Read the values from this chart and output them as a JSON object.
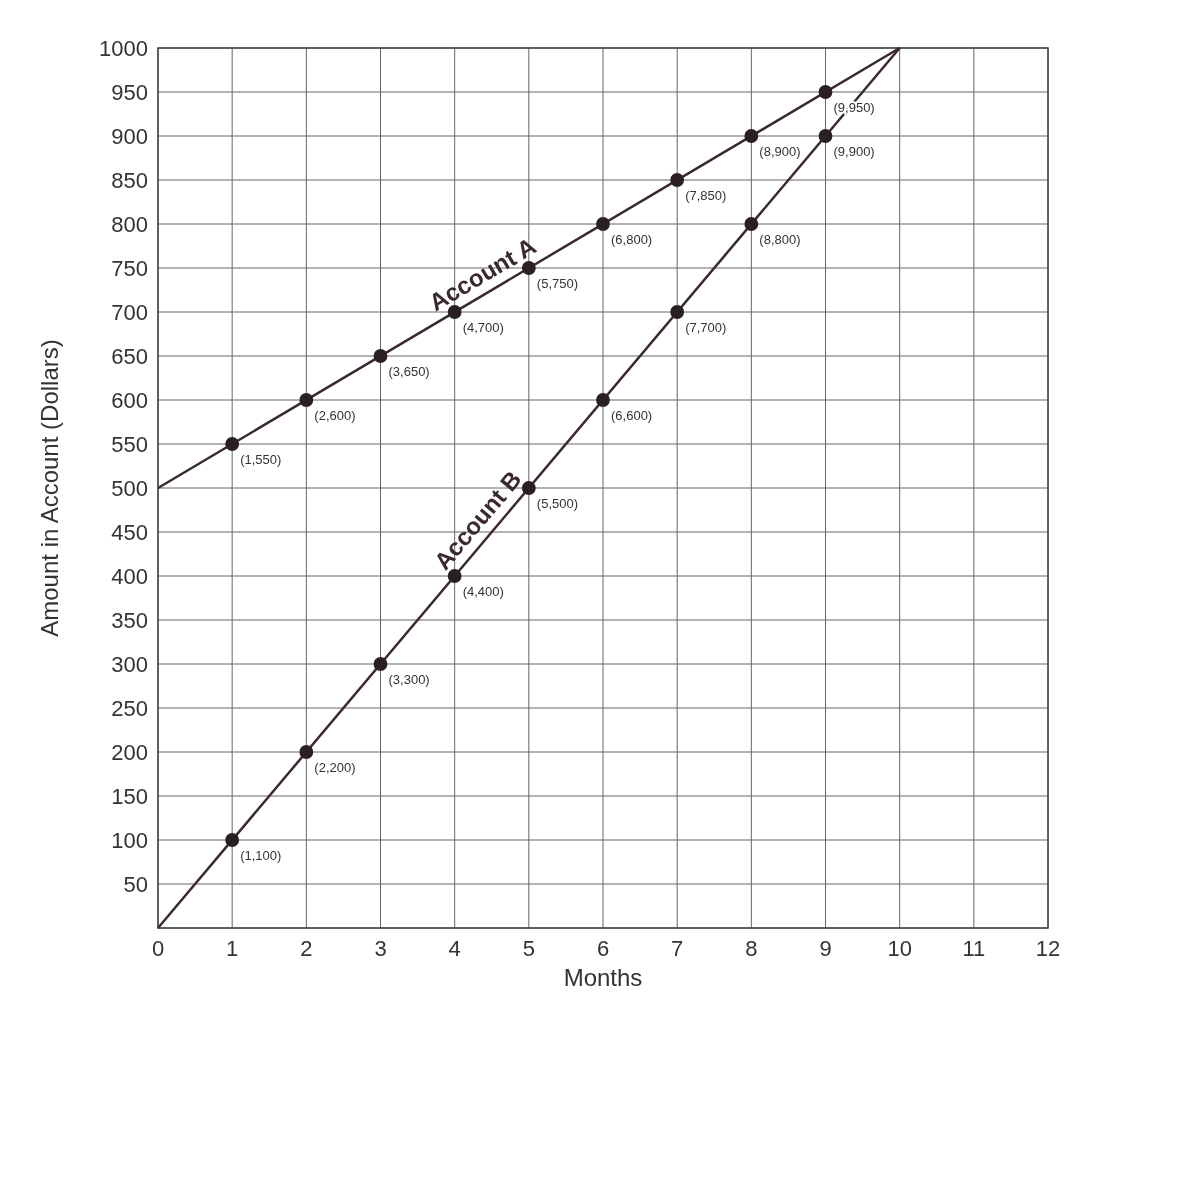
{
  "chart_data": {
    "type": "line",
    "xlabel": "Months",
    "ylabel": "Amount in Account (Dollars)",
    "xlim": [
      0,
      12
    ],
    "ylim": [
      0,
      1000
    ],
    "xticks": [
      0,
      1,
      2,
      3,
      4,
      5,
      6,
      7,
      8,
      9,
      10,
      11,
      12
    ],
    "yticks": [
      {
        "value": 0,
        "label": null
      },
      50,
      100,
      150,
      200,
      250,
      300,
      350,
      400,
      450,
      500,
      550,
      600,
      650,
      700,
      750,
      800,
      850,
      900,
      950,
      1000
    ],
    "grid": true,
    "series": [
      {
        "name": "Account A",
        "color": "#3a2a30",
        "x": [
          0,
          10
        ],
        "values": [
          500,
          1000
        ]
      },
      {
        "name": "Account B",
        "color": "#3a2a30",
        "x": [
          0,
          10
        ],
        "values": [
          0,
          1000
        ]
      },
      {
        "type": "scatter",
        "marker": "circle",
        "color": "#2a2024",
        "x": [
          1,
          2,
          3,
          4,
          5,
          6,
          7,
          8,
          9
        ],
        "values": [
          550,
          600,
          650,
          700,
          750,
          800,
          850,
          900,
          950
        ]
      },
      {
        "type": "scatter",
        "marker": "circle",
        "color": "#2a2024",
        "x": [
          1,
          2,
          3,
          4,
          5,
          6,
          7,
          8,
          9
        ],
        "values": [
          100,
          200,
          300,
          400,
          500,
          600,
          700,
          800,
          900
        ]
      }
    ],
    "annotations": [
      {
        "text": "(1,550)",
        "x": 1,
        "y": 550
      },
      {
        "text": "(2,600)",
        "x": 2,
        "y": 600
      },
      {
        "text": "(3,650)",
        "x": 3,
        "y": 650
      },
      {
        "text": "(4,700)",
        "x": 4,
        "y": 700
      },
      {
        "text": "(5,750)",
        "x": 5,
        "y": 750
      },
      {
        "text": "(6,800)",
        "x": 6,
        "y": 800
      },
      {
        "text": "(7,850)",
        "x": 7,
        "y": 850
      },
      {
        "text": "(8,900)",
        "x": 8,
        "y": 900
      },
      {
        "text": "(9,950)",
        "x": 9,
        "y": 950
      },
      {
        "text": "(1,100)",
        "x": 1,
        "y": 100
      },
      {
        "text": "(2,200)",
        "x": 2,
        "y": 200
      },
      {
        "text": "(3,300)",
        "x": 3,
        "y": 300
      },
      {
        "text": "(4,400)",
        "x": 4,
        "y": 400
      },
      {
        "text": "(5,500)",
        "x": 5,
        "y": 500
      },
      {
        "text": "(6,600)",
        "x": 6,
        "y": 600
      },
      {
        "text": "(7,700)",
        "x": 7,
        "y": 700
      },
      {
        "text": "(8,800)",
        "x": 8,
        "y": 800
      },
      {
        "text": "(9,900)",
        "x": 9,
        "y": 900
      }
    ]
  }
}
